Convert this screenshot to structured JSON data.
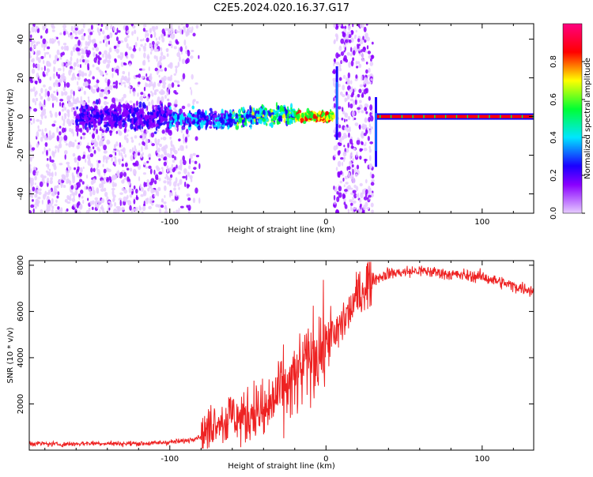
{
  "chart_data": [
    {
      "type": "heatmap",
      "title": "C2E5.2024.020.16.37.G17",
      "xlabel": "Height of straight line (km)",
      "ylabel": "Frequency (Hz)",
      "xlim": [
        -190,
        133
      ],
      "ylim": [
        -50,
        48
      ],
      "x_ticks": [
        -100,
        0,
        100
      ],
      "y_ticks": [
        -40,
        -20,
        0,
        20,
        40
      ],
      "colorbar": {
        "label": "Normalized spectral amplitude",
        "range": [
          0,
          1
        ],
        "ticks": [
          "0.0",
          "0.2",
          "0.4",
          "0.6",
          "0.8"
        ],
        "colormap": [
          "#e6ccff",
          "#8a00ff",
          "#1a00ff",
          "#00e6ff",
          "#00ff33",
          "#ffff00",
          "#ff0000",
          "#ff0080"
        ]
      },
      "ridge": {
        "x": [
          -150,
          -130,
          -110,
          -90,
          -70,
          -50,
          -30,
          -15,
          0,
          5,
          20,
          33,
          60,
          100,
          133
        ],
        "freq": [
          0,
          0,
          -1,
          -1,
          -2,
          0,
          1,
          0,
          0,
          0,
          0,
          0,
          0,
          0,
          0
        ]
      },
      "noise_band": {
        "x_from": 5,
        "x_to": 30
      }
    },
    {
      "type": "line",
      "xlabel": "Height of straight line (km)",
      "ylabel": "SNR (10 * v/v)",
      "xlim": [
        -190,
        133
      ],
      "ylim": [
        0,
        8200
      ],
      "x_ticks": [
        -100,
        0,
        100
      ],
      "y_ticks": [
        2000,
        4000,
        6000,
        8000
      ],
      "color": "#ee2222",
      "series": [
        {
          "x": [
            -190,
            -170,
            -150,
            -130,
            -110,
            -100,
            -90,
            -80,
            -75,
            -70,
            -65,
            -60,
            -55,
            -50,
            -45,
            -40,
            -35,
            -30,
            -25,
            -20,
            -15,
            -10,
            -5,
            0,
            3,
            5,
            8,
            10,
            15,
            20,
            25,
            30,
            35,
            40,
            50,
            60,
            70,
            80,
            90,
            100,
            110,
            120,
            133
          ],
          "values": [
            300,
            250,
            300,
            280,
            300,
            350,
            400,
            600,
            900,
            1400,
            1200,
            1600,
            1300,
            1500,
            1800,
            1500,
            2000,
            2500,
            2700,
            3000,
            3500,
            4000,
            4300,
            4500,
            5200,
            4700,
            5200,
            5500,
            6000,
            6600,
            7100,
            7400,
            7500,
            7650,
            7700,
            7750,
            7700,
            7600,
            7550,
            7500,
            7300,
            7100,
            6900
          ]
        }
      ]
    }
  ]
}
